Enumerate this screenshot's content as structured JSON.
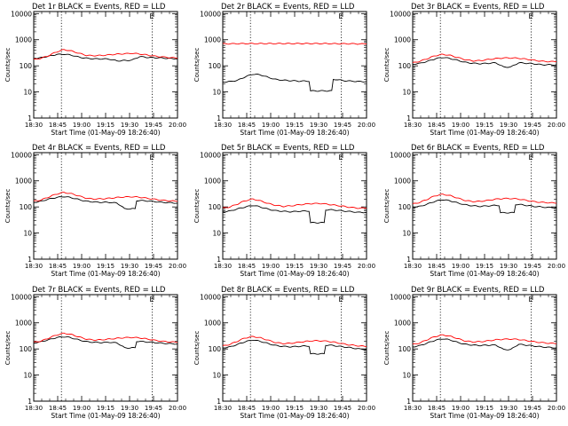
{
  "x_axis": {
    "ticks": [
      "18:30",
      "18:45",
      "19:00",
      "19:15",
      "19:30",
      "19:45",
      "20:00"
    ],
    "label": "Start Time (01-May-09 18:26:40)"
  },
  "y_axis": {
    "label": "Counts/sec",
    "scale": "log",
    "ticks": [
      "1",
      "10",
      "100",
      "1000",
      "10000"
    ],
    "ylim": [
      1,
      12000
    ]
  },
  "xlim_minutes": [
    0,
    95
  ],
  "vlines_minutes": [
    18.3,
    78.3
  ],
  "series_colors": {
    "events": "#000000",
    "lld": "#ff0000"
  },
  "marker": "E",
  "chart_data": [
    {
      "type": "line",
      "title": "Det 1r BLACK = Events, RED = LLD",
      "x": [
        0,
        5,
        10,
        15,
        20,
        25,
        30,
        35,
        40,
        45,
        50,
        55,
        60,
        65,
        70,
        75,
        80,
        85,
        90,
        95
      ],
      "series": [
        {
          "values": [
            185,
            205,
            235,
            270,
            280,
            255,
            215,
            195,
            185,
            185,
            180,
            155,
            160,
            165,
            225,
            210,
            205,
            200,
            190,
            188
          ]
        },
        {
          "values": [
            175,
            195,
            245,
            340,
            420,
            370,
            300,
            250,
            245,
            250,
            265,
            280,
            290,
            300,
            285,
            260,
            235,
            220,
            205,
            200
          ]
        }
      ]
    },
    {
      "type": "line",
      "title": "Det 2r BLACK = Events, RED = LLD",
      "x": [
        0,
        5,
        10,
        15,
        20,
        25,
        30,
        35,
        40,
        45,
        50,
        55,
        60,
        65,
        70,
        75,
        80,
        85,
        90,
        95
      ],
      "series": [
        {
          "values": [
            24,
            25,
            28,
            38,
            48,
            45,
            36,
            30,
            28,
            27,
            26,
            26,
            11,
            11,
            11,
            30,
            27,
            26,
            25,
            25
          ]
        },
        {
          "values": [
            700,
            700,
            705,
            710,
            710,
            712,
            712,
            710,
            712,
            712,
            712,
            712,
            710,
            710,
            710,
            705,
            700,
            700,
            690,
            690
          ]
        }
      ]
    },
    {
      "type": "line",
      "title": "Det 3r BLACK = Events, RED = LLD",
      "x": [
        0,
        5,
        10,
        15,
        20,
        25,
        30,
        35,
        40,
        45,
        50,
        55,
        60,
        65,
        70,
        75,
        80,
        85,
        90,
        95
      ],
      "series": [
        {
          "values": [
            115,
            125,
            150,
            185,
            210,
            190,
            160,
            135,
            125,
            120,
            125,
            130,
            90,
            90,
            130,
            125,
            120,
            110,
            110,
            110
          ]
        },
        {
          "values": [
            130,
            150,
            190,
            245,
            275,
            250,
            205,
            170,
            155,
            160,
            175,
            190,
            200,
            200,
            195,
            180,
            165,
            150,
            145,
            145
          ]
        }
      ]
    },
    {
      "type": "line",
      "title": "Det 4r BLACK = Events, RED = LLD",
      "x": [
        0,
        5,
        10,
        15,
        20,
        25,
        30,
        35,
        40,
        45,
        50,
        55,
        60,
        65,
        70,
        75,
        80,
        85,
        90,
        95
      ],
      "series": [
        {
          "values": [
            150,
            165,
            200,
            230,
            250,
            225,
            190,
            165,
            155,
            150,
            150,
            140,
            85,
            85,
            175,
            170,
            160,
            150,
            145,
            140
          ]
        },
        {
          "values": [
            165,
            185,
            240,
            310,
            360,
            320,
            260,
            215,
            200,
            205,
            215,
            230,
            240,
            245,
            235,
            215,
            195,
            180,
            170,
            165
          ]
        }
      ]
    },
    {
      "type": "line",
      "title": "Det 5r BLACK = Events, RED = LLD",
      "x": [
        0,
        5,
        10,
        15,
        20,
        25,
        30,
        35,
        40,
        45,
        50,
        55,
        60,
        65,
        70,
        75,
        80,
        85,
        90,
        95
      ],
      "series": [
        {
          "values": [
            65,
            70,
            85,
            100,
            115,
            100,
            82,
            72,
            68,
            65,
            68,
            70,
            25,
            25,
            78,
            75,
            70,
            66,
            62,
            62
          ]
        },
        {
          "values": [
            90,
            100,
            130,
            175,
            200,
            170,
            135,
            115,
            105,
            110,
            120,
            130,
            135,
            135,
            125,
            115,
            105,
            95,
            90,
            90
          ]
        }
      ]
    },
    {
      "type": "line",
      "title": "Det 6r BLACK = Events, RED = LLD",
      "x": [
        0,
        5,
        10,
        15,
        20,
        25,
        30,
        35,
        40,
        45,
        50,
        55,
        60,
        65,
        70,
        75,
        80,
        85,
        90,
        95
      ],
      "series": [
        {
          "values": [
            100,
            105,
            130,
            165,
            190,
            170,
            140,
            120,
            110,
            105,
            110,
            115,
            60,
            60,
            125,
            115,
            105,
            100,
            95,
            95
          ]
        },
        {
          "values": [
            130,
            150,
            200,
            270,
            305,
            270,
            215,
            175,
            160,
            165,
            180,
            200,
            210,
            210,
            200,
            180,
            160,
            150,
            145,
            140
          ]
        }
      ]
    },
    {
      "type": "line",
      "title": "Det 7r BLACK = Events, RED = LLD",
      "x": [
        0,
        5,
        10,
        15,
        20,
        25,
        30,
        35,
        40,
        45,
        50,
        55,
        60,
        65,
        70,
        75,
        80,
        85,
        90,
        95
      ],
      "series": [
        {
          "values": [
            170,
            190,
            225,
            270,
            295,
            265,
            220,
            190,
            180,
            175,
            180,
            170,
            110,
            110,
            195,
            185,
            175,
            165,
            160,
            155
          ]
        },
        {
          "values": [
            180,
            200,
            260,
            340,
            400,
            355,
            285,
            235,
            220,
            225,
            240,
            255,
            270,
            275,
            265,
            240,
            215,
            195,
            185,
            180
          ]
        }
      ]
    },
    {
      "type": "line",
      "title": "Det 8r BLACK = Events, RED = LLD",
      "x": [
        0,
        5,
        10,
        15,
        20,
        25,
        30,
        35,
        40,
        45,
        50,
        55,
        60,
        65,
        70,
        75,
        80,
        85,
        90,
        95
      ],
      "series": [
        {
          "values": [
            110,
            120,
            150,
            190,
            220,
            195,
            160,
            135,
            125,
            120,
            125,
            130,
            65,
            65,
            140,
            130,
            120,
            110,
            100,
            95
          ]
        },
        {
          "values": [
            130,
            150,
            200,
            265,
            300,
            265,
            215,
            175,
            160,
            165,
            180,
            195,
            205,
            205,
            195,
            175,
            155,
            140,
            130,
            125
          ]
        }
      ]
    },
    {
      "type": "line",
      "title": "Det 9r BLACK = Events, RED = LLD",
      "x": [
        0,
        5,
        10,
        15,
        20,
        25,
        30,
        35,
        40,
        45,
        50,
        55,
        60,
        65,
        70,
        75,
        80,
        85,
        90,
        95
      ],
      "series": [
        {
          "values": [
            120,
            135,
            170,
            215,
            245,
            220,
            175,
            150,
            140,
            135,
            140,
            140,
            95,
            95,
            150,
            140,
            130,
            120,
            115,
            110
          ]
        },
        {
          "values": [
            150,
            170,
            230,
            300,
            345,
            305,
            245,
            200,
            185,
            190,
            205,
            225,
            235,
            240,
            230,
            210,
            190,
            175,
            165,
            160
          ]
        }
      ]
    }
  ]
}
